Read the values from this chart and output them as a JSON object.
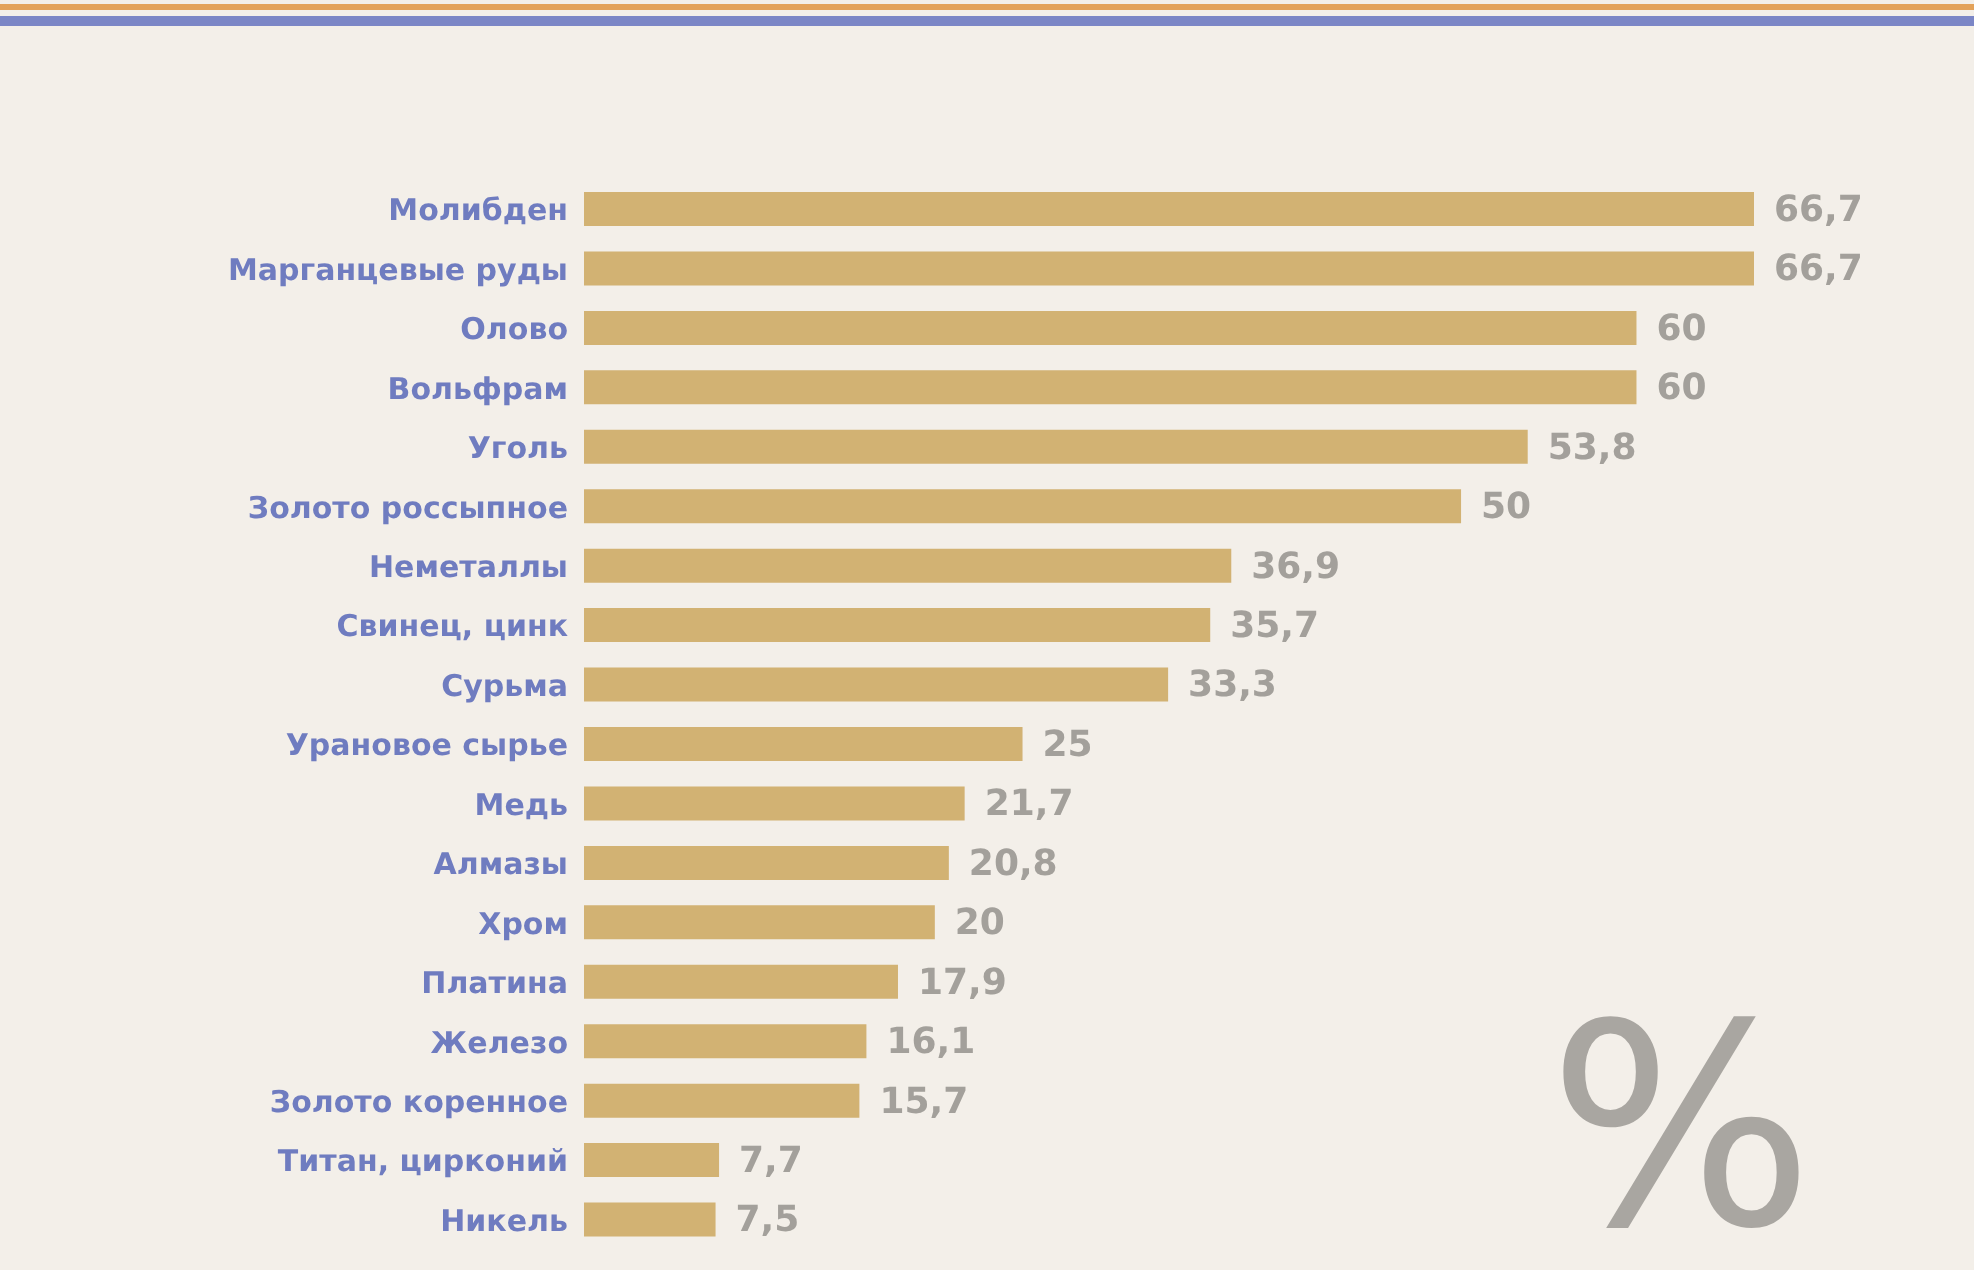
{
  "chart_data": {
    "type": "bar",
    "orientation": "horizontal",
    "categories": [
      "Молибден",
      "Марганцевые руды",
      "Олово",
      "Вольфрам",
      "Уголь",
      "Золото россыпное",
      "Неметаллы",
      "Свинец, цинк",
      "Сурьма",
      "Урановое сырье",
      "Медь",
      "Алмазы",
      "Хром",
      "Платина",
      "Железо",
      "Золото коренное",
      "Титан, цирконий",
      "Никель"
    ],
    "series": [
      {
        "color": "#d2b273",
        "values": [
          66.7,
          66.7,
          60,
          60,
          53.8,
          50,
          36.9,
          35.7,
          33.3,
          25,
          21.7,
          20.8,
          20,
          17.9,
          16.1,
          15.7,
          7.7,
          7.5
        ],
        "value_labels": [
          "66,7",
          "66,7",
          "60",
          "60",
          "53,8",
          "50",
          "36,9",
          "35,7",
          "33,3",
          "25",
          "21,7",
          "20,8",
          "20",
          "17,9",
          "16,1",
          "15,7",
          "7,7",
          "7,5"
        ]
      }
    ],
    "annotations": [
      "%"
    ],
    "tick_labels": "y",
    "grid": false,
    "legend": false
  }
}
